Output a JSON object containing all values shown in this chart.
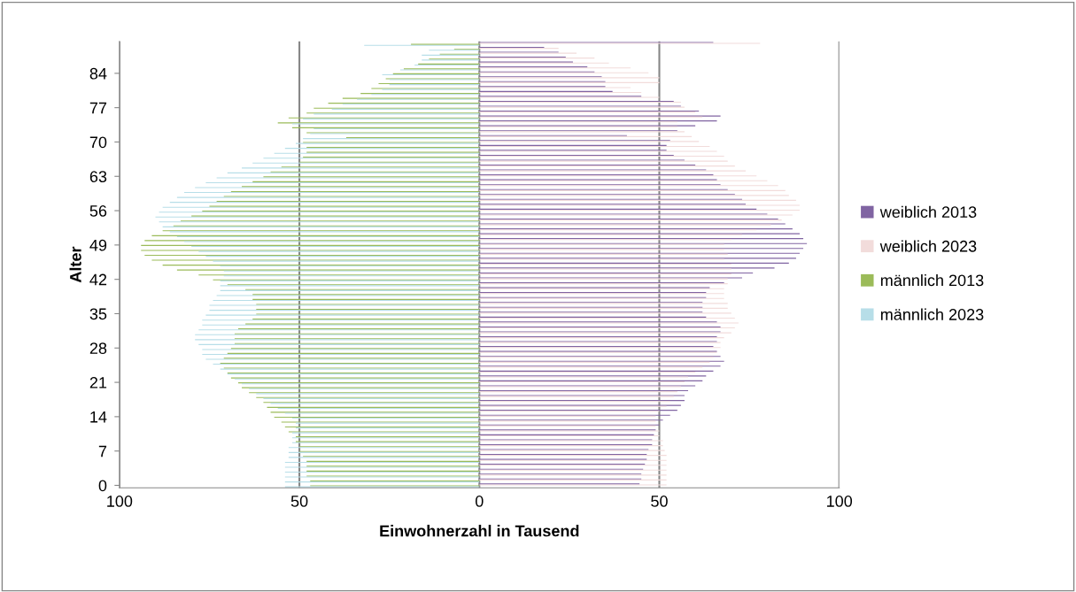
{
  "chart_data": {
    "type": "bar",
    "orientation": "horizontal",
    "xlabel": "Einwohnerzahl in Tausend",
    "ylabel": "Alter",
    "categories": [
      null,
      null,
      null,
      null,
      null,
      null,
      "84",
      null,
      null,
      null,
      null,
      null,
      null,
      "77",
      null,
      null,
      null,
      null,
      null,
      null,
      "70",
      null,
      null,
      null,
      null,
      null,
      null,
      "63",
      null,
      null,
      null,
      null,
      null,
      null,
      "56",
      null,
      null,
      null,
      null,
      null,
      null,
      "49",
      null,
      null,
      null,
      null,
      null,
      null,
      "42",
      null,
      null,
      null,
      null,
      null,
      null,
      "35",
      null,
      null,
      null,
      null,
      null,
      null,
      "28",
      null,
      null,
      null,
      null,
      null,
      null,
      "21",
      null,
      null,
      null,
      null,
      null,
      null,
      "14",
      null,
      null,
      null,
      null,
      null,
      null,
      "7",
      null,
      null,
      null,
      null,
      null,
      null,
      "0"
    ],
    "xlim": [
      -100,
      100
    ],
    "xticks": [
      {
        "value": -100,
        "label": "100"
      },
      {
        "value": -50,
        "label": "50"
      },
      0,
      50,
      100
    ],
    "grid": "x",
    "legend": "right",
    "series": [
      {
        "name": "weiblich 2013",
        "color": "#8064a2",
        "values": [
          65,
          18,
          22,
          24,
          26,
          30,
          32,
          34,
          35,
          35,
          37,
          45,
          54,
          56,
          61,
          67,
          66,
          60,
          55,
          41,
          53,
          52,
          52,
          54,
          57,
          60,
          63,
          65,
          66,
          67,
          69,
          71,
          73,
          74,
          77,
          80,
          83,
          85,
          87,
          89,
          90,
          91,
          90,
          89,
          88,
          86,
          82,
          76,
          73,
          68,
          64,
          63,
          63,
          62,
          62,
          62,
          63,
          66,
          67,
          67,
          66,
          66,
          65,
          66,
          67,
          68,
          67,
          65,
          63,
          62,
          60,
          58,
          57,
          57,
          56,
          55,
          53,
          51,
          50,
          49,
          48.5,
          48,
          48,
          47,
          46.5,
          46.5,
          46,
          45.5,
          45,
          45,
          44.5
        ]
      },
      {
        "name": "weiblich 2023",
        "color": "#f2dcdb",
        "values": [
          78,
          22,
          27,
          32,
          36,
          42,
          47,
          50,
          50,
          42,
          45,
          50,
          56,
          57,
          60,
          62,
          55,
          55,
          57,
          59,
          61,
          64,
          66,
          68,
          69,
          71,
          74,
          77,
          80,
          83,
          85,
          86,
          88,
          89,
          89,
          87,
          84,
          81,
          77,
          73,
          70,
          68,
          68,
          69,
          68,
          70,
          70,
          70,
          69,
          69,
          68,
          68,
          68,
          69,
          69,
          70,
          71,
          72,
          71,
          70,
          68,
          67,
          67,
          66,
          65,
          64,
          62,
          60,
          58,
          57,
          56,
          55,
          54,
          53,
          52,
          50,
          49,
          49,
          49,
          50,
          50,
          51,
          51,
          51.5,
          52,
          52,
          52,
          52,
          52,
          52,
          52
        ]
      },
      {
        "name": "männlich 2013",
        "color": "#9bbb59",
        "values": [
          -19,
          -7,
          -11,
          -14,
          -17,
          -21,
          -24,
          -26,
          -28,
          -30,
          -33,
          -38,
          -42,
          -46,
          -48,
          -53,
          -56,
          -52,
          -48,
          -37,
          -49,
          -48,
          -48,
          -49,
          -50,
          -55,
          -58,
          -60,
          -63,
          -66,
          -69,
          -71,
          -73,
          -75,
          -77,
          -80,
          -83,
          -85,
          -88,
          -91,
          -93,
          -94,
          -94,
          -93,
          -91,
          -88,
          -84,
          -78,
          -74,
          -70,
          -65,
          -63,
          -63,
          -62,
          -62,
          -62,
          -63,
          -65,
          -67,
          -68,
          -68,
          -68,
          -69,
          -70,
          -71,
          -72,
          -71,
          -70,
          -69,
          -67,
          -66,
          -64,
          -62,
          -60,
          -59,
          -58,
          -57,
          -55,
          -54,
          -53,
          -51,
          -51,
          -50,
          -50,
          -49,
          -48,
          -48,
          -48,
          -48,
          -47,
          -47
        ]
      },
      {
        "name": "männlich 2023",
        "color": "#b7dee8",
        "values": [
          -32,
          -14,
          -16,
          -16,
          -18,
          -22,
          -27,
          -25,
          -25,
          -27,
          -30,
          -34,
          -38,
          -41,
          -46,
          -49,
          -52,
          -46,
          -47,
          -49,
          -51,
          -54,
          -57,
          -60,
          -63,
          -66,
          -70,
          -73,
          -76,
          -79,
          -82,
          -84,
          -86,
          -88,
          -89,
          -90,
          -89,
          -88,
          -86,
          -84,
          -82,
          -80,
          -78,
          -76,
          -74,
          -72,
          -71,
          -71,
          -72,
          -72,
          -72,
          -73,
          -74,
          -75,
          -75,
          -76,
          -77,
          -77,
          -78,
          -79,
          -79,
          -78,
          -77,
          -77,
          -76,
          -74,
          -72,
          -70,
          -68,
          -66,
          -64,
          -62,
          -60,
          -58,
          -56,
          -54,
          -52,
          -51,
          -51,
          -52,
          -52,
          -52,
          -53,
          -53,
          -53,
          -54,
          -54,
          -54,
          -54,
          -54,
          -54
        ]
      }
    ]
  }
}
